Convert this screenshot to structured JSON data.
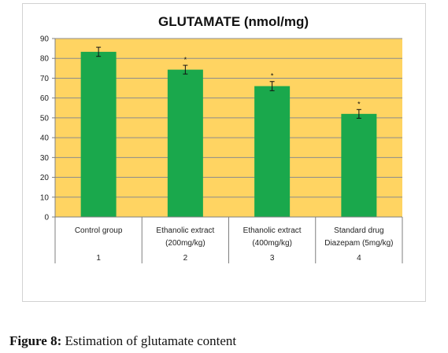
{
  "caption": {
    "label": "Figure 8:",
    "text": "Estimation of glutamate content"
  },
  "colors": {
    "plot_background": "#ffd462",
    "bar": "#1aa84c",
    "gridline": "#8c8c8c"
  },
  "chart_data": {
    "type": "bar",
    "title": "GLUTAMATE (nmol/mg)",
    "categories": [
      [
        "Control group"
      ],
      [
        "Ethanolic extract",
        "(200mg/kg)"
      ],
      [
        "Ethanolic extract",
        "(400mg/kg)"
      ],
      [
        "Standard drug",
        "Diazepam (5mg/kg)"
      ]
    ],
    "category_numbers": [
      "1",
      "2",
      "3",
      "4"
    ],
    "values": [
      83.3,
      74.3,
      66.0,
      52.0
    ],
    "error": [
      2.3,
      2.2,
      2.3,
      2.2
    ],
    "significance_marks": [
      "",
      "*",
      "*",
      "*"
    ],
    "ylim": [
      0,
      90
    ],
    "yticks": [
      0,
      10,
      20,
      30,
      40,
      50,
      60,
      70,
      80,
      90
    ],
    "grid": true,
    "legend": "none"
  }
}
